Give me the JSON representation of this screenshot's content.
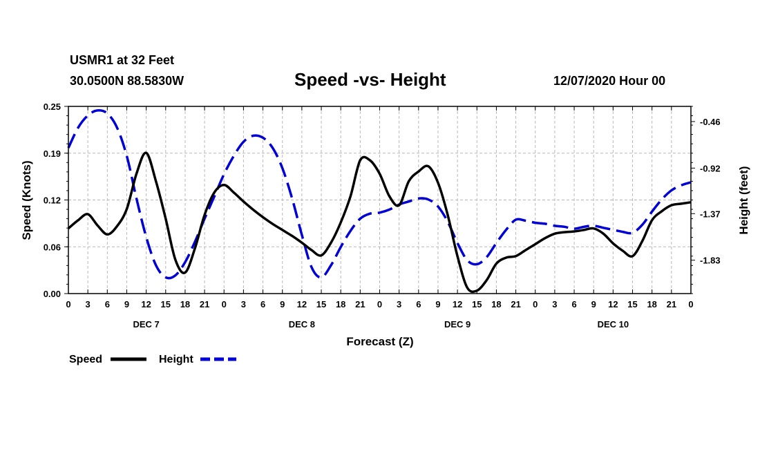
{
  "header": {
    "station": "USMR1 at 32 Feet",
    "coords": "30.0500N 88.5830W",
    "title": "Speed -vs- Height",
    "runtime": "12/07/2020 Hour 00"
  },
  "chart_data": {
    "type": "line",
    "title": "Speed -vs- Height",
    "xlabel": "Forecast (Z)",
    "ylabel": "Speed (Knots)",
    "y2label": "Height (feet)",
    "x_range_hours": [
      0,
      96
    ],
    "x_tick_step_hours": 3,
    "x_tick_labels": [
      "0",
      "3",
      "6",
      "9",
      "12",
      "15",
      "18",
      "21",
      "0",
      "3",
      "6",
      "9",
      "12",
      "15",
      "18",
      "21",
      "0",
      "3",
      "6",
      "9",
      "12",
      "15",
      "18",
      "21",
      "0",
      "3",
      "6",
      "9",
      "12",
      "15",
      "18",
      "21",
      "0"
    ],
    "day_labels": [
      {
        "label": "DEC 7",
        "hour": 12
      },
      {
        "label": "DEC 8",
        "hour": 36
      },
      {
        "label": "DEC 9",
        "hour": 60
      },
      {
        "label": "DEC 10",
        "hour": 84
      }
    ],
    "y_left": {
      "range": [
        0.0,
        0.25
      ],
      "ticks": [
        "0.00",
        "0.06",
        "0.12",
        "0.19",
        "0.25"
      ],
      "tick_values": [
        0,
        0.0625,
        0.125,
        0.1875,
        0.25
      ]
    },
    "y_right": {
      "range": [
        -2.16,
        -0.31
      ],
      "ticks": [
        "-0.46",
        "-0.92",
        "-1.37",
        "-1.83"
      ],
      "tick_values": [
        -0.46,
        -0.92,
        -1.37,
        -1.83
      ]
    },
    "grid": true,
    "series": [
      {
        "name": "Speed",
        "axis": "left",
        "color": "#000000",
        "style": "solid",
        "x": [
          0,
          1.5,
          3,
          4.5,
          6,
          7.5,
          9,
          10.5,
          12,
          13.5,
          15,
          16.5,
          18,
          19.5,
          21,
          22.5,
          24,
          25.5,
          27,
          28.5,
          30,
          31.5,
          33,
          34.5,
          36,
          37.5,
          39,
          40.5,
          42,
          43.5,
          45,
          46.5,
          48,
          49.5,
          51,
          52.5,
          54,
          55.5,
          57,
          58.5,
          60,
          61.5,
          63,
          64.5,
          66,
          67.5,
          69,
          70.5,
          72,
          73.5,
          75,
          76.5,
          78,
          79.5,
          81,
          82.5,
          84,
          85.5,
          87,
          88.5,
          90,
          91.5,
          93,
          94.5,
          96
        ],
        "values": [
          0.087,
          0.098,
          0.106,
          0.091,
          0.079,
          0.09,
          0.113,
          0.16,
          0.188,
          0.15,
          0.1,
          0.045,
          0.028,
          0.06,
          0.105,
          0.135,
          0.145,
          0.135,
          0.123,
          0.112,
          0.102,
          0.093,
          0.085,
          0.077,
          0.068,
          0.058,
          0.051,
          0.068,
          0.095,
          0.13,
          0.178,
          0.178,
          0.16,
          0.13,
          0.118,
          0.15,
          0.163,
          0.17,
          0.148,
          0.105,
          0.05,
          0.008,
          0.004,
          0.018,
          0.04,
          0.048,
          0.05,
          0.058,
          0.066,
          0.074,
          0.08,
          0.082,
          0.083,
          0.085,
          0.087,
          0.08,
          0.067,
          0.057,
          0.05,
          0.07,
          0.098,
          0.11,
          0.118,
          0.12,
          0.122
        ]
      },
      {
        "name": "Height",
        "axis": "right",
        "color": "#0000d6",
        "style": "dashed",
        "x": [
          0,
          1.5,
          3,
          4.5,
          6,
          7.5,
          9,
          10.5,
          12,
          13.5,
          15,
          16.5,
          18,
          19.5,
          21,
          22.5,
          24,
          25.5,
          27,
          28.5,
          30,
          31.5,
          33,
          34.5,
          36,
          37.5,
          39,
          40.5,
          42,
          43.5,
          45,
          46.5,
          48,
          49.5,
          51,
          52.5,
          54,
          55.5,
          57,
          58.5,
          60,
          61.5,
          63,
          64.5,
          66,
          67.5,
          69,
          70.5,
          72,
          73.5,
          75,
          76.5,
          78,
          79.5,
          81,
          82.5,
          84,
          85.5,
          87,
          88.5,
          90,
          91.5,
          93,
          94.5,
          96
        ],
        "values": [
          -0.72,
          -0.52,
          -0.4,
          -0.35,
          -0.38,
          -0.52,
          -0.8,
          -1.22,
          -1.6,
          -1.88,
          -2.0,
          -1.98,
          -1.85,
          -1.65,
          -1.42,
          -1.2,
          -0.98,
          -0.8,
          -0.66,
          -0.6,
          -0.62,
          -0.72,
          -0.92,
          -1.22,
          -1.58,
          -1.9,
          -2.0,
          -1.88,
          -1.7,
          -1.54,
          -1.42,
          -1.37,
          -1.36,
          -1.33,
          -1.28,
          -1.25,
          -1.22,
          -1.23,
          -1.3,
          -1.45,
          -1.66,
          -1.83,
          -1.87,
          -1.8,
          -1.66,
          -1.53,
          -1.43,
          -1.44,
          -1.46,
          -1.47,
          -1.49,
          -1.5,
          -1.52,
          -1.5,
          -1.49,
          -1.51,
          -1.53,
          -1.55,
          -1.56,
          -1.48,
          -1.35,
          -1.23,
          -1.14,
          -1.09,
          -1.06
        ]
      }
    ],
    "legend": [
      {
        "label": "Speed",
        "color": "#000000",
        "style": "solid"
      },
      {
        "label": "Height",
        "color": "#0000d6",
        "style": "dashed"
      }
    ],
    "legend_position": "bottom-left"
  }
}
